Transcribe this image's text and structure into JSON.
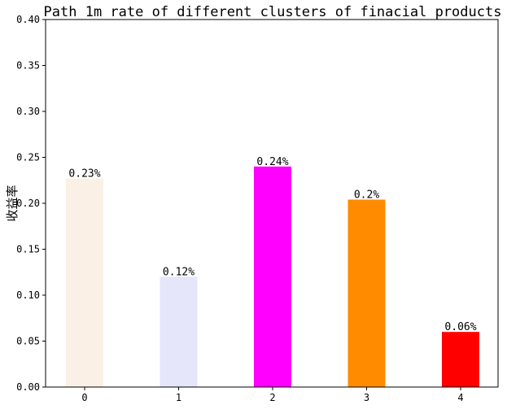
{
  "chart_data": {
    "type": "bar",
    "title": "Path_1m rate of different clusters of finacial products",
    "xlabel": "",
    "ylabel": "收益率",
    "categories": [
      "0",
      "1",
      "2",
      "3",
      "4"
    ],
    "values": [
      0.227,
      0.12,
      0.24,
      0.204,
      0.06
    ],
    "data_labels": [
      "0.23%",
      "0.12%",
      "0.24%",
      "0.2%",
      "0.06%"
    ],
    "colors": [
      "#faf0e6",
      "#e6e6fa",
      "#ff00ff",
      "#ff8c00",
      "#ff0000"
    ],
    "ylim": [
      0,
      0.4
    ],
    "yticks": [
      "0.00",
      "0.05",
      "0.10",
      "0.15",
      "0.20",
      "0.25",
      "0.30",
      "0.35",
      "0.40"
    ],
    "grid": false,
    "legend": "none"
  }
}
